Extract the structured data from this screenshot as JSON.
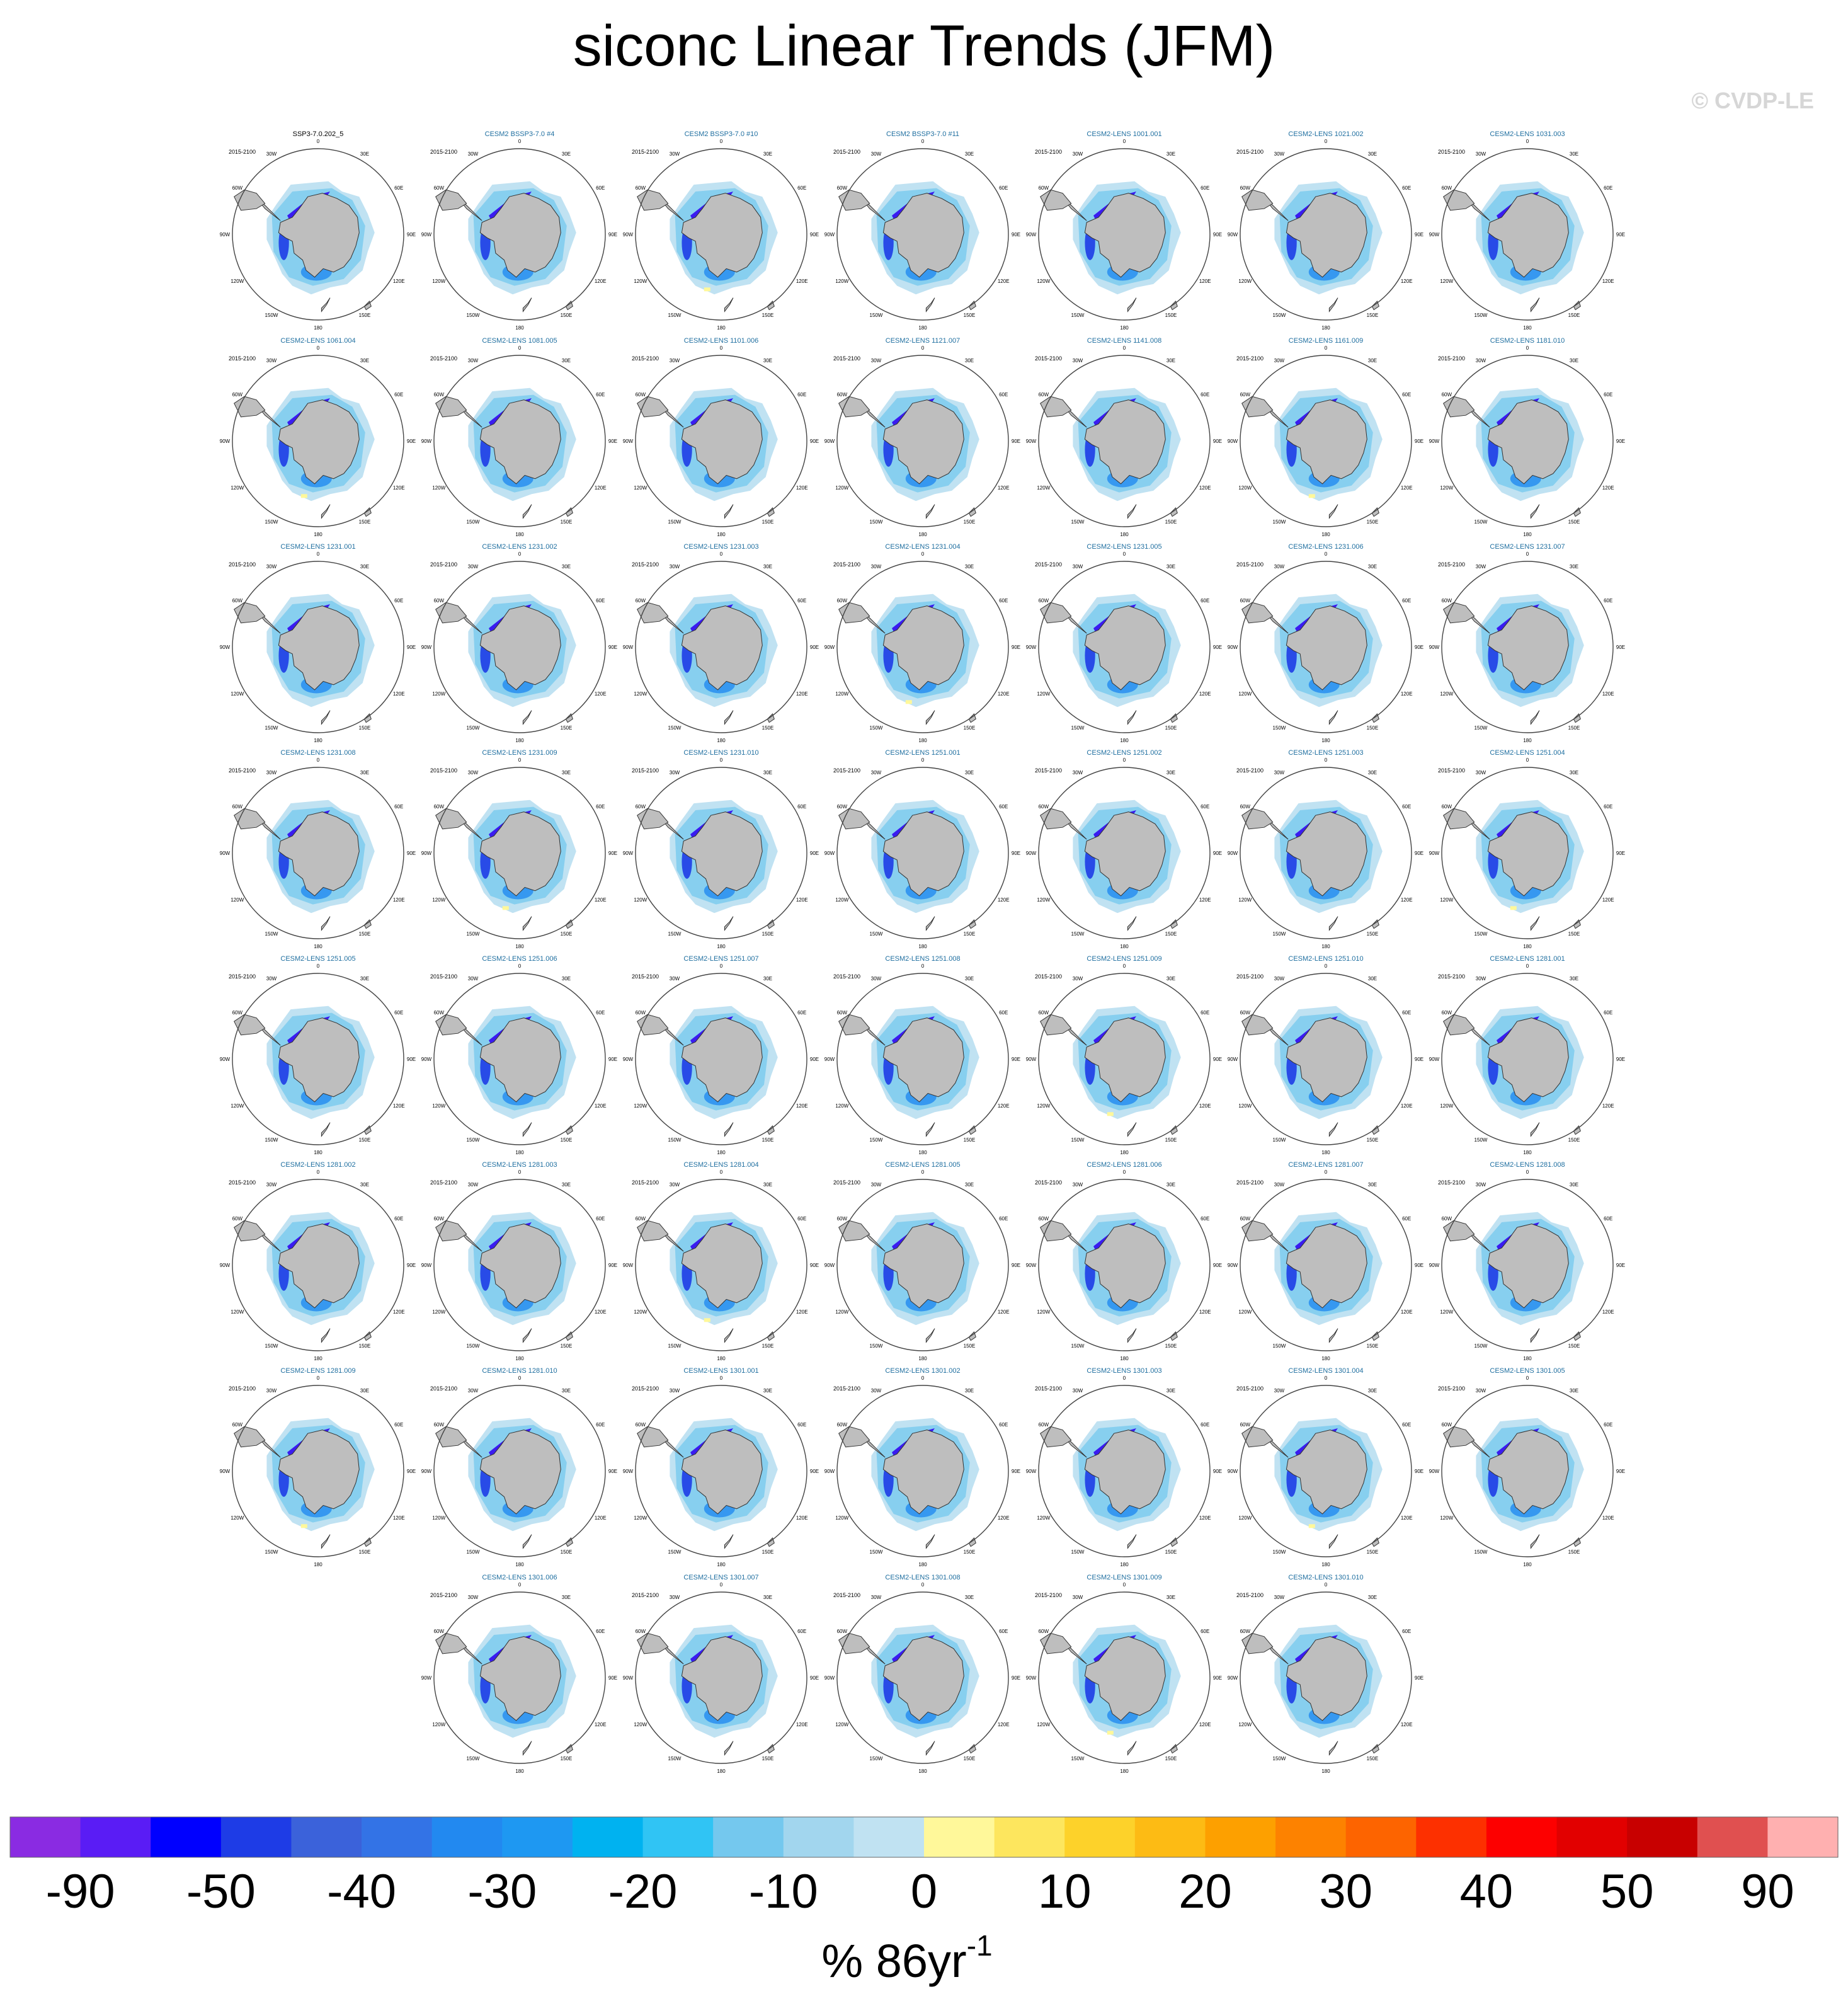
{
  "chart_data": {
    "type": "heatmap",
    "title": "siconc Linear Trends (JFM)",
    "watermark": "© CVDP-LE",
    "period_label": "2015-2100",
    "longitude_labels": [
      "0",
      "30E",
      "60E",
      "90E",
      "120E",
      "150E",
      "180",
      "150W",
      "120W",
      "90W",
      "60W",
      "30W"
    ],
    "panels": [
      "SSP3-7.0.202_5",
      "CESM2 BSSP3-7.0 #4",
      "CESM2 BSSP3-7.0 #10",
      "CESM2 BSSP3-7.0 #11",
      "CESM2-LENS 1001.001",
      "CESM2-LENS 1021.002",
      "CESM2-LENS 1031.003",
      "CESM2-LENS 1061.004",
      "CESM2-LENS 1081.005",
      "CESM2-LENS 1101.006",
      "CESM2-LENS 1121.007",
      "CESM2-LENS 1141.008",
      "CESM2-LENS 1161.009",
      "CESM2-LENS 1181.010",
      "CESM2-LENS 1231.001",
      "CESM2-LENS 1231.002",
      "CESM2-LENS 1231.003",
      "CESM2-LENS 1231.004",
      "CESM2-LENS 1231.005",
      "CESM2-LENS 1231.006",
      "CESM2-LENS 1231.007",
      "CESM2-LENS 1231.008",
      "CESM2-LENS 1231.009",
      "CESM2-LENS 1231.010",
      "CESM2-LENS 1251.001",
      "CESM2-LENS 1251.002",
      "CESM2-LENS 1251.003",
      "CESM2-LENS 1251.004",
      "CESM2-LENS 1251.005",
      "CESM2-LENS 1251.006",
      "CESM2-LENS 1251.007",
      "CESM2-LENS 1251.008",
      "CESM2-LENS 1251.009",
      "CESM2-LENS 1251.010",
      "CESM2-LENS 1281.001",
      "CESM2-LENS 1281.002",
      "CESM2-LENS 1281.003",
      "CESM2-LENS 1281.004",
      "CESM2-LENS 1281.005",
      "CESM2-LENS 1281.006",
      "CESM2-LENS 1281.007",
      "CESM2-LENS 1281.008",
      "CESM2-LENS 1281.009",
      "CESM2-LENS 1281.010",
      "CESM2-LENS 1301.001",
      "CESM2-LENS 1301.002",
      "CESM2-LENS 1301.003",
      "CESM2-LENS 1301.004",
      "CESM2-LENS 1301.005",
      "CESM2-LENS 1301.006",
      "CESM2-LENS 1301.007",
      "CESM2-LENS 1301.008",
      "CESM2-LENS 1301.009",
      "CESM2-LENS 1301.010"
    ],
    "panel_title_colors": {
      "observation": "#000000",
      "model": "#1f6fa0"
    },
    "colorbar": {
      "colors": [
        "#8a2be2",
        "#5a1cf5",
        "#0000ff",
        "#1e3ce6",
        "#3b62da",
        "#3373e6",
        "#2289f0",
        "#1e98f2",
        "#00b2f0",
        "#30c4f4",
        "#74c8ee",
        "#a2d6ee",
        "#c0e2f2",
        "#fff89a",
        "#fde65e",
        "#fdd22a",
        "#fdbb14",
        "#fda000",
        "#fd8200",
        "#fd6400",
        "#fd3000",
        "#fd0000",
        "#e20000",
        "#c80000",
        "#e05050",
        "#ffb0b0"
      ],
      "tick_labels": [
        "-90",
        "-50",
        "-40",
        "-30",
        "-20",
        "-10",
        "0",
        "10",
        "20",
        "30",
        "40",
        "50",
        "90"
      ],
      "units": "% 86yr",
      "units_superscript": "-1"
    },
    "map_colors": {
      "land": "#bebebe",
      "light_decline": "#c0e2f2",
      "moderate_decline": "#74c8ee",
      "strong_decline": "#2289f0",
      "extreme_decline": "#1e3ce6",
      "weddell_decline": "#3a1cf0",
      "increase": "#fff89a"
    }
  }
}
